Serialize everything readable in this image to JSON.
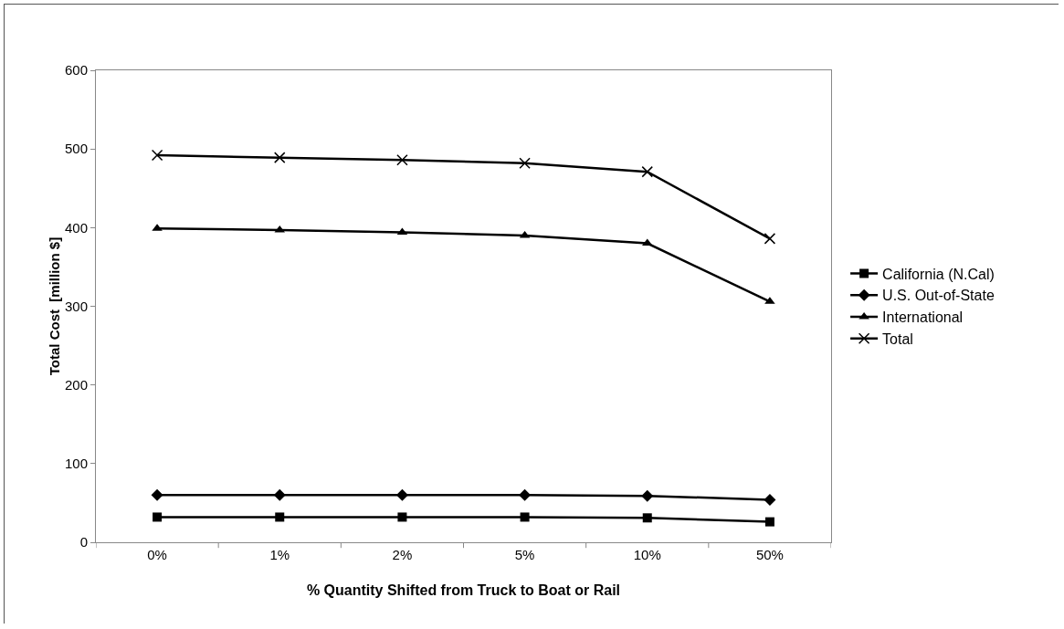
{
  "chart_data": {
    "type": "line",
    "xlabel": "% Quantity Shifted from Truck to Boat or Rail",
    "ylabel": "Total Cost  [million $]",
    "categories": [
      "0%",
      "1%",
      "2%",
      "5%",
      "10%",
      "50%"
    ],
    "ylim": [
      0,
      600
    ],
    "yticks": [
      0,
      100,
      200,
      300,
      400,
      500,
      600
    ],
    "grid": false,
    "legend": "right",
    "line_style": "solid",
    "series": [
      {
        "name": "California (N.Cal)",
        "color": "#000000",
        "marker": "square",
        "values": [
          32,
          32,
          32,
          32,
          31,
          26
        ]
      },
      {
        "name": "U.S. Out-of-State",
        "color": "#000000",
        "marker": "diamond",
        "values": [
          60,
          60,
          60,
          60,
          59,
          54
        ]
      },
      {
        "name": "International",
        "color": "#000000",
        "marker": "triangle",
        "values": [
          399,
          397,
          394,
          390,
          380,
          306
        ]
      },
      {
        "name": "Total",
        "color": "#000000",
        "marker": "cross",
        "values": [
          492,
          489,
          486,
          482,
          471,
          386
        ]
      }
    ]
  }
}
